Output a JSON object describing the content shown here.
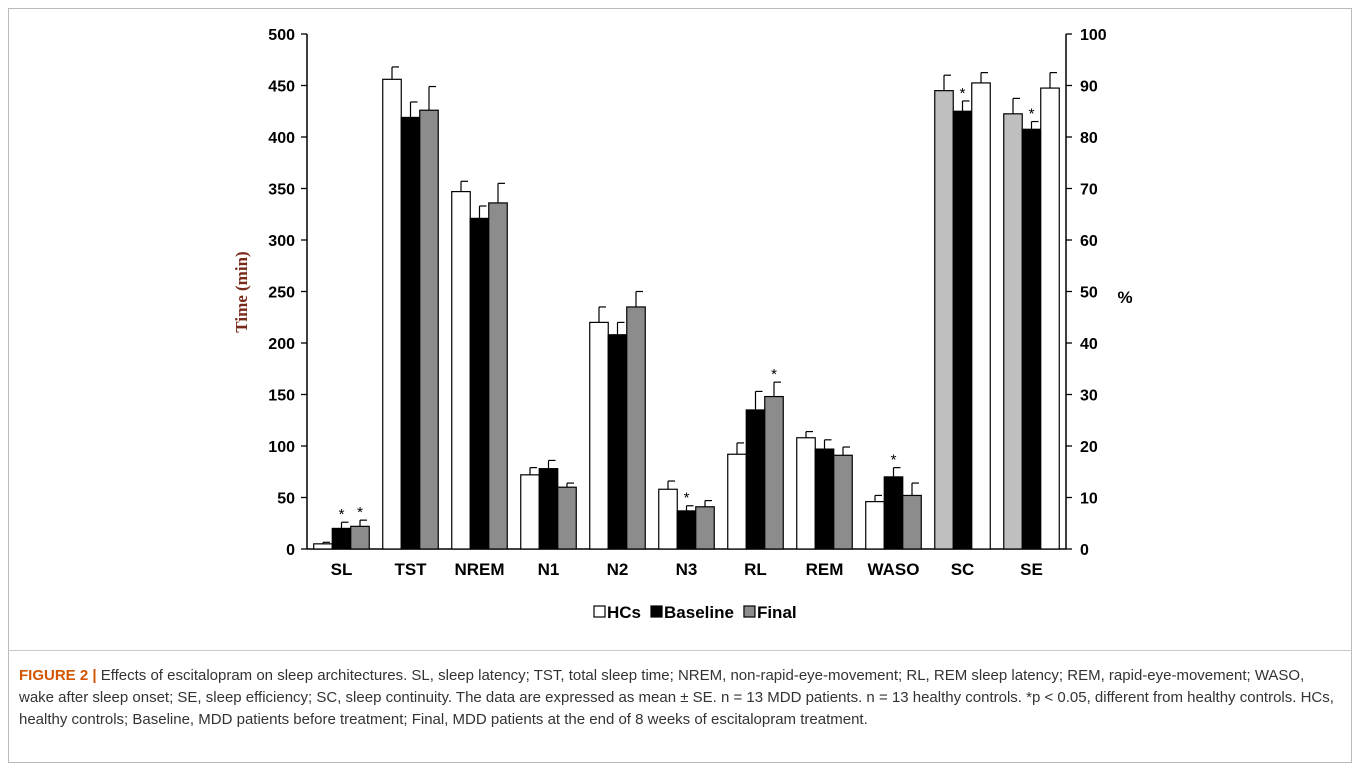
{
  "figure": {
    "label": "FIGURE 2 |",
    "caption": "Effects of escitalopram on sleep architectures. SL, sleep latency; TST, total sleep time; NREM, non-rapid-eye-movement; RL, REM sleep latency; REM, rapid-eye-movement; WASO, wake after sleep onset; SE, sleep efficiency; SC, sleep continuity. The data are expressed as mean ± SE. n = 13 MDD patients. n = 13 healthy controls. *p < 0.05, different from healthy controls. HCs, healthy controls; Baseline, MDD patients before treatment; Final, MDD patients at the end of 8 weeks of escitalopram treatment."
  },
  "chart_data": {
    "type": "bar",
    "categories": [
      "SL",
      "TST",
      "NREM",
      "N1",
      "N2",
      "N3",
      "RL",
      "REM",
      "WASO",
      "SC",
      "SE"
    ],
    "ylabel": "Time (min)",
    "y2label": "%",
    "ylim": [
      0,
      500
    ],
    "y2lim": [
      0,
      100
    ],
    "yticks": [
      "0",
      "50",
      "100",
      "150",
      "200",
      "250",
      "300",
      "350",
      "400",
      "450",
      "500"
    ],
    "y2ticks": [
      "0",
      "10",
      "20",
      "30",
      "40",
      "50",
      "60",
      "70",
      "80",
      "90",
      "100"
    ],
    "grid": false,
    "legend_position": "bottom",
    "secondary_axis_categories": [
      "SC",
      "SE"
    ],
    "series": [
      {
        "name": "HCs",
        "color": "#ffffff",
        "color_secondary": "#bfbfbf",
        "values": [
          5,
          456,
          347,
          72,
          220,
          58,
          92,
          108,
          46,
          89,
          84.5
        ],
        "errors": [
          1.5,
          12,
          10,
          7,
          15,
          8,
          11,
          6,
          6,
          3,
          3
        ]
      },
      {
        "name": "Baseline",
        "color": "#000000",
        "color_secondary": "#000000",
        "values": [
          20,
          419,
          321,
          78,
          208,
          37,
          135,
          97,
          70,
          85,
          81.5
        ],
        "errors": [
          6,
          15,
          12,
          8,
          12,
          5,
          18,
          9,
          9,
          2,
          1.5
        ]
      },
      {
        "name": "Final",
        "color": "#8c8c8c",
        "color_secondary": "#ffffff",
        "values": [
          22,
          426,
          336,
          60,
          235,
          41,
          148,
          91,
          52,
          90.5,
          89.5
        ],
        "errors": [
          6,
          23,
          19,
          4,
          15,
          6,
          14,
          8,
          12,
          2,
          3
        ]
      }
    ],
    "significant": [
      [
        false,
        true,
        true
      ],
      [
        false,
        false,
        false
      ],
      [
        false,
        false,
        false
      ],
      [
        false,
        false,
        false
      ],
      [
        false,
        false,
        false
      ],
      [
        false,
        true,
        false
      ],
      [
        false,
        false,
        true
      ],
      [
        false,
        false,
        false
      ],
      [
        false,
        true,
        false
      ],
      [
        false,
        true,
        false
      ],
      [
        false,
        true,
        false
      ]
    ],
    "significance_mark": "*"
  }
}
